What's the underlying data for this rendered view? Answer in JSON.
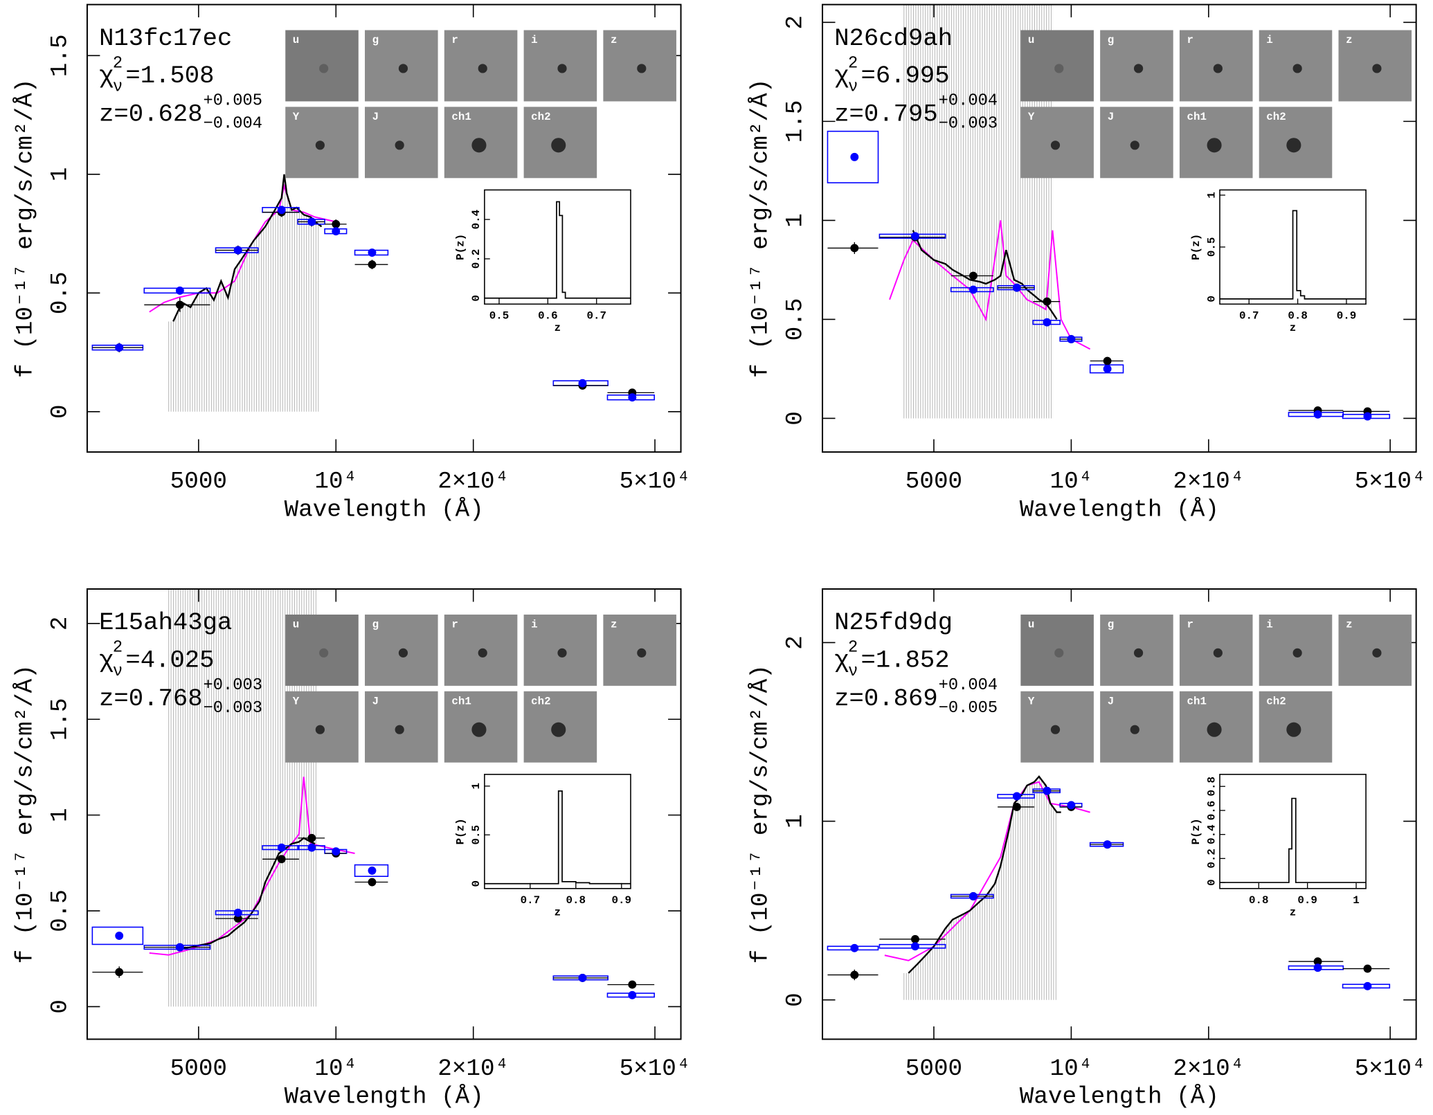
{
  "chart_data": [
    {
      "type": "sed",
      "title": "N13fc17ec",
      "chi2_symbol": "χ",
      "chi2_sub": "ν",
      "chi2_sup": "2",
      "chi2": "=1.508",
      "z_text": "z=0.628",
      "z_plus": "+0.005",
      "z_minus": "−0.004",
      "xlabel": "Wavelength (Å)",
      "ylabel": "f (10⁻¹⁷ erg/s/cm²/Å)",
      "xlog": true,
      "xlim": [
        2850,
        57000
      ],
      "xticks": [
        5000,
        {
          "value": 10000,
          "label": "10⁴"
        },
        {
          "value": 20000,
          "label": "2×10⁴"
        },
        {
          "value": 50000,
          "label": "5×10⁴"
        }
      ],
      "ylim": [
        -0.17,
        1.715
      ],
      "yticks": [
        0,
        0.5,
        1,
        1.5
      ],
      "bands": [
        "u",
        "g",
        "r",
        "i",
        "z",
        "Y",
        "J",
        "ch1",
        "ch2"
      ],
      "band_wavelengths": [
        3350,
        4550,
        6100,
        7600,
        8850,
        10000,
        12000,
        34700,
        44600
      ],
      "band_widths": [
        850,
        1500,
        1300,
        1400,
        1200,
        1100,
        2000,
        9500,
        10500
      ],
      "observed": [
        0.27,
        0.45,
        0.68,
        0.84,
        0.8,
        0.79,
        0.62,
        0.11,
        0.08
      ],
      "observed_errors": [
        0.02,
        0.03,
        0.02,
        0.02,
        0.02,
        0.02,
        0.02,
        0.01,
        0.01
      ],
      "model": [
        0.27,
        0.51,
        0.68,
        0.85,
        0.8,
        0.76,
        0.67,
        0.12,
        0.06
      ],
      "model_errors": [
        0.01,
        0.01,
        0.01,
        0.01,
        0.01,
        0.01,
        0.01,
        0.01,
        0.01
      ],
      "observed_color": "#000000",
      "model_color": "#0000ff",
      "model_spectrum_color": "#ff00ff",
      "mask_color": "#b0b0b0",
      "mask": [
        4300,
        9200
      ],
      "mask_style": "to_spectrum",
      "spectrum_x": [
        4400,
        4600,
        4800,
        5000,
        5200,
        5400,
        5600,
        5800,
        6000,
        6200,
        6400,
        6600,
        6800,
        7000,
        7200,
        7400,
        7600,
        7700,
        7800,
        8000,
        8200,
        8500,
        8800,
        9000,
        9300
      ],
      "spectrum_y": [
        0.38,
        0.46,
        0.44,
        0.5,
        0.52,
        0.47,
        0.55,
        0.48,
        0.6,
        0.64,
        0.68,
        0.72,
        0.75,
        0.78,
        0.82,
        0.86,
        0.9,
        1.0,
        0.92,
        0.85,
        0.86,
        0.83,
        0.82,
        0.8,
        0.78
      ],
      "model_spectrum_x": [
        3900,
        4200,
        4500,
        5000,
        5500,
        6000,
        6500,
        7000,
        7500,
        7700,
        8000,
        8500,
        9000,
        10000
      ],
      "model_spectrum_y": [
        0.42,
        0.46,
        0.48,
        0.5,
        0.5,
        0.55,
        0.7,
        0.8,
        0.85,
        0.95,
        0.85,
        0.84,
        0.82,
        0.8
      ],
      "pz": {
        "xlabel": "z",
        "ylabel": "P(z)",
        "xlim": [
          0.47,
          0.77
        ],
        "xticks": [
          0.5,
          0.6,
          0.7
        ],
        "ylim": [
          -0.03,
          0.55
        ],
        "yticks": [
          0,
          0.2,
          0.4
        ],
        "x": [
          0.47,
          0.618,
          0.618,
          0.624,
          0.624,
          0.63,
          0.63,
          0.636,
          0.636,
          0.77
        ],
        "y": [
          0,
          0,
          0.49,
          0.49,
          0.42,
          0.42,
          0.03,
          0.03,
          0,
          0
        ]
      }
    },
    {
      "type": "sed",
      "title": "N26cd9ah",
      "chi2_symbol": "χ",
      "chi2_sub": "ν",
      "chi2_sup": "2",
      "chi2": "=6.995",
      "z_text": "z=0.795",
      "z_plus": "+0.004",
      "z_minus": "−0.003",
      "xlabel": "Wavelength (Å)",
      "ylabel": "f (10⁻¹⁷ erg/s/cm²/Å)",
      "xlog": true,
      "xlim": [
        2850,
        57000
      ],
      "xticks": [
        5000,
        {
          "value": 10000,
          "label": "10⁴"
        },
        {
          "value": 20000,
          "label": "2×10⁴"
        },
        {
          "value": 50000,
          "label": "5×10⁴"
        }
      ],
      "ylim": [
        -0.17,
        2.09
      ],
      "yticks": [
        0,
        0.5,
        1,
        1.5,
        2
      ],
      "bands": [
        "u",
        "g",
        "r",
        "i",
        "z",
        "Y",
        "J",
        "ch1",
        "ch2"
      ],
      "band_wavelengths": [
        3350,
        4550,
        6100,
        7600,
        8850,
        10000,
        12000,
        34700,
        44600
      ],
      "band_widths": [
        850,
        1500,
        1300,
        1400,
        1200,
        1100,
        2000,
        9500,
        10500
      ],
      "observed": [
        0.86,
        0.915,
        0.72,
        0.66,
        0.59,
        0.4,
        0.29,
        0.04,
        0.035
      ],
      "observed_errors": [
        0.03,
        0.02,
        0.02,
        0.02,
        0.02,
        0.02,
        0.02,
        0.01,
        0.01
      ],
      "model": [
        1.32,
        0.92,
        0.65,
        0.66,
        0.485,
        0.4,
        0.25,
        0.02,
        0.01
      ],
      "model_errors": [
        0.13,
        0.01,
        0.01,
        0.01,
        0.01,
        0.01,
        0.02,
        0.01,
        0.01
      ],
      "observed_color": "#000000",
      "model_color": "#0000ff",
      "model_spectrum_color": "#ff00ff",
      "mask_color": "#b0b0b0",
      "mask": [
        4300,
        9100
      ],
      "mask_style": "full",
      "spectrum_x": [
        4500,
        4700,
        5000,
        5300,
        5500,
        5800,
        6000,
        6300,
        6500,
        6800,
        7000,
        7200,
        7500,
        7800,
        8000,
        8300,
        8500,
        8800,
        9000,
        9300
      ],
      "spectrum_y": [
        0.95,
        0.85,
        0.8,
        0.78,
        0.75,
        0.72,
        0.7,
        0.69,
        0.68,
        0.7,
        0.72,
        0.85,
        0.7,
        0.68,
        0.65,
        0.62,
        0.6,
        0.58,
        0.55,
        0.5
      ],
      "model_spectrum_x": [
        4000,
        4300,
        4500,
        5000,
        5500,
        6000,
        6500,
        7000,
        7200,
        7500,
        8000,
        8500,
        8800,
        9100,
        9500,
        10000,
        11000
      ],
      "model_spectrum_y": [
        0.6,
        0.8,
        0.9,
        0.8,
        0.72,
        0.65,
        0.5,
        1.0,
        0.72,
        0.68,
        0.6,
        0.57,
        0.55,
        0.95,
        0.5,
        0.4,
        0.35
      ],
      "pz": {
        "xlabel": "z",
        "ylabel": "P(z)",
        "xlim": [
          0.64,
          0.94
        ],
        "xticks": [
          0.7,
          0.8,
          0.9
        ],
        "ylim": [
          -0.05,
          1.05
        ],
        "yticks": [
          0,
          0.5,
          1
        ],
        "x": [
          0.64,
          0.79,
          0.79,
          0.798,
          0.798,
          0.806,
          0.806,
          0.814,
          0.814,
          0.94
        ],
        "y": [
          0,
          0,
          0.85,
          0.85,
          0.08,
          0.08,
          0.03,
          0.03,
          0,
          0
        ]
      }
    },
    {
      "type": "sed",
      "title": "E15ah43ga",
      "chi2_symbol": "χ",
      "chi2_sub": "ν",
      "chi2_sup": "2",
      "chi2": "=4.025",
      "z_text": "z=0.768",
      "z_plus": "+0.003",
      "z_minus": "−0.003",
      "xlabel": "Wavelength (Å)",
      "ylabel": "f (10⁻¹⁷ erg/s/cm²/Å)",
      "xlog": true,
      "xlim": [
        2850,
        57000
      ],
      "xticks": [
        5000,
        {
          "value": 10000,
          "label": "10⁴"
        },
        {
          "value": 20000,
          "label": "2×10⁴"
        },
        {
          "value": 50000,
          "label": "5×10⁴"
        }
      ],
      "ylim": [
        -0.17,
        2.18
      ],
      "yticks": [
        0,
        0.5,
        1,
        1.5,
        2
      ],
      "bands": [
        "u",
        "g",
        "r",
        "i",
        "z",
        "Y",
        "J",
        "ch1",
        "ch2"
      ],
      "band_wavelengths": [
        3350,
        4550,
        6100,
        7600,
        8850,
        10000,
        12000,
        34700,
        44600
      ],
      "band_widths": [
        850,
        1500,
        1300,
        1400,
        1200,
        1100,
        2000,
        9500,
        10500
      ],
      "observed": [
        0.18,
        0.31,
        0.46,
        0.77,
        0.88,
        0.8,
        0.65,
        0.15,
        0.115
      ],
      "observed_errors": [
        0.03,
        0.02,
        0.02,
        0.02,
        0.02,
        0.02,
        0.02,
        0.01,
        0.01
      ],
      "model": [
        0.37,
        0.31,
        0.49,
        0.83,
        0.83,
        0.81,
        0.71,
        0.15,
        0.06
      ],
      "model_errors": [
        0.045,
        0.01,
        0.01,
        0.01,
        0.01,
        0.01,
        0.03,
        0.01,
        0.01
      ],
      "observed_color": "#000000",
      "model_color": "#0000ff",
      "model_spectrum_color": "#ff00ff",
      "mask_color": "#b0b0b0",
      "mask": [
        4300,
        9100
      ],
      "mask_style": "full",
      "spectrum_x": [
        4500,
        4800,
        5000,
        5300,
        5500,
        5800,
        6000,
        6300,
        6500,
        6800,
        7000,
        7300,
        7500,
        7800,
        8000,
        8300,
        8500,
        8800,
        9000
      ],
      "spectrum_y": [
        0.3,
        0.31,
        0.32,
        0.33,
        0.35,
        0.37,
        0.4,
        0.44,
        0.48,
        0.55,
        0.65,
        0.74,
        0.8,
        0.83,
        0.85,
        0.86,
        0.88,
        0.86,
        0.85
      ],
      "model_spectrum_x": [
        3900,
        4300,
        4800,
        5500,
        6500,
        7000,
        7500,
        8000,
        8300,
        8500,
        8800,
        10000,
        11000
      ],
      "model_spectrum_y": [
        0.28,
        0.27,
        0.3,
        0.35,
        0.48,
        0.62,
        0.75,
        0.85,
        0.9,
        1.2,
        0.85,
        0.82,
        0.8
      ],
      "pz": {
        "xlabel": "z",
        "ylabel": "P(z)",
        "xlim": [
          0.6,
          0.92
        ],
        "xticks": [
          0.7,
          0.8,
          0.9
        ],
        "ylim": [
          -0.05,
          1.12
        ],
        "yticks": [
          0,
          0.5,
          1
        ],
        "x": [
          0.6,
          0.762,
          0.762,
          0.77,
          0.77,
          0.8,
          0.8,
          0.83,
          0.83,
          0.92
        ],
        "y": [
          0,
          0,
          0.95,
          0.95,
          0.02,
          0.02,
          0.01,
          0.01,
          0,
          0
        ]
      }
    },
    {
      "type": "sed",
      "title": "N25fd9dg",
      "chi2_symbol": "χ",
      "chi2_sub": "ν",
      "chi2_sup": "2",
      "chi2": "=1.852",
      "z_text": "z=0.869",
      "z_plus": "+0.004",
      "z_minus": "−0.005",
      "xlabel": "Wavelength (Å)",
      "ylabel": "f (10⁻¹⁷ erg/s/cm²/Å)",
      "xlog": true,
      "xlim": [
        2850,
        57000
      ],
      "xticks": [
        5000,
        {
          "value": 10000,
          "label": "10⁴"
        },
        {
          "value": 20000,
          "label": "2×10⁴"
        },
        {
          "value": 50000,
          "label": "5×10⁴"
        }
      ],
      "ylim": [
        -0.22,
        2.3
      ],
      "yticks": [
        0,
        1,
        2
      ],
      "bands": [
        "u",
        "g",
        "r",
        "i",
        "z",
        "Y",
        "J",
        "ch1",
        "ch2"
      ],
      "band_wavelengths": [
        3350,
        4550,
        6100,
        7600,
        8850,
        10000,
        12000,
        34700,
        44600
      ],
      "band_widths": [
        850,
        1500,
        1300,
        1400,
        1200,
        1100,
        2000,
        9500,
        10500
      ],
      "observed": [
        0.14,
        0.34,
        0.58,
        1.08,
        1.17,
        1.08,
        0.87,
        0.215,
        0.175
      ],
      "observed_errors": [
        0.03,
        0.02,
        0.02,
        0.02,
        0.02,
        0.02,
        0.02,
        0.01,
        0.01
      ],
      "model": [
        0.29,
        0.3,
        0.58,
        1.14,
        1.17,
        1.09,
        0.87,
        0.18,
        0.077
      ],
      "model_errors": [
        0.01,
        0.01,
        0.01,
        0.01,
        0.01,
        0.01,
        0.01,
        0.01,
        0.01
      ],
      "observed_color": "#000000",
      "model_color": "#0000ff",
      "model_spectrum_color": "#ff00ff",
      "mask_color": "#b0b0b0",
      "mask": [
        4300,
        9300
      ],
      "mask_style": "to_spectrum",
      "spectrum_x": [
        4400,
        4600,
        4800,
        5000,
        5300,
        5500,
        5800,
        6000,
        6300,
        6500,
        6800,
        7000,
        7300,
        7500,
        7800,
        8000,
        8300,
        8500,
        8800,
        9000,
        9300,
        9500
      ],
      "spectrum_y": [
        0.15,
        0.2,
        0.25,
        0.3,
        0.4,
        0.45,
        0.48,
        0.5,
        0.55,
        0.58,
        0.65,
        0.75,
        0.95,
        1.1,
        1.15,
        1.2,
        1.22,
        1.25,
        1.2,
        1.1,
        1.05,
        1.05
      ],
      "model_spectrum_x": [
        3900,
        4400,
        5000,
        6000,
        7000,
        7500,
        8000,
        8500,
        9000,
        10000,
        11000
      ],
      "model_spectrum_y": [
        0.25,
        0.22,
        0.3,
        0.5,
        0.8,
        1.1,
        1.2,
        1.22,
        1.1,
        1.08,
        1.05
      ],
      "pz": {
        "xlabel": "z",
        "ylabel": "P(z)",
        "xlim": [
          0.72,
          1.02
        ],
        "xticks": [
          0.8,
          0.9,
          1
        ],
        "ylim": [
          -0.05,
          0.9
        ],
        "yticks": [
          0,
          0.2,
          0.4,
          0.6,
          0.8
        ],
        "x": [
          0.72,
          0.862,
          0.862,
          0.868,
          0.868,
          0.876,
          0.876,
          1.02
        ],
        "y": [
          0,
          0,
          0.28,
          0.28,
          0.7,
          0.7,
          0,
          0
        ]
      }
    }
  ]
}
